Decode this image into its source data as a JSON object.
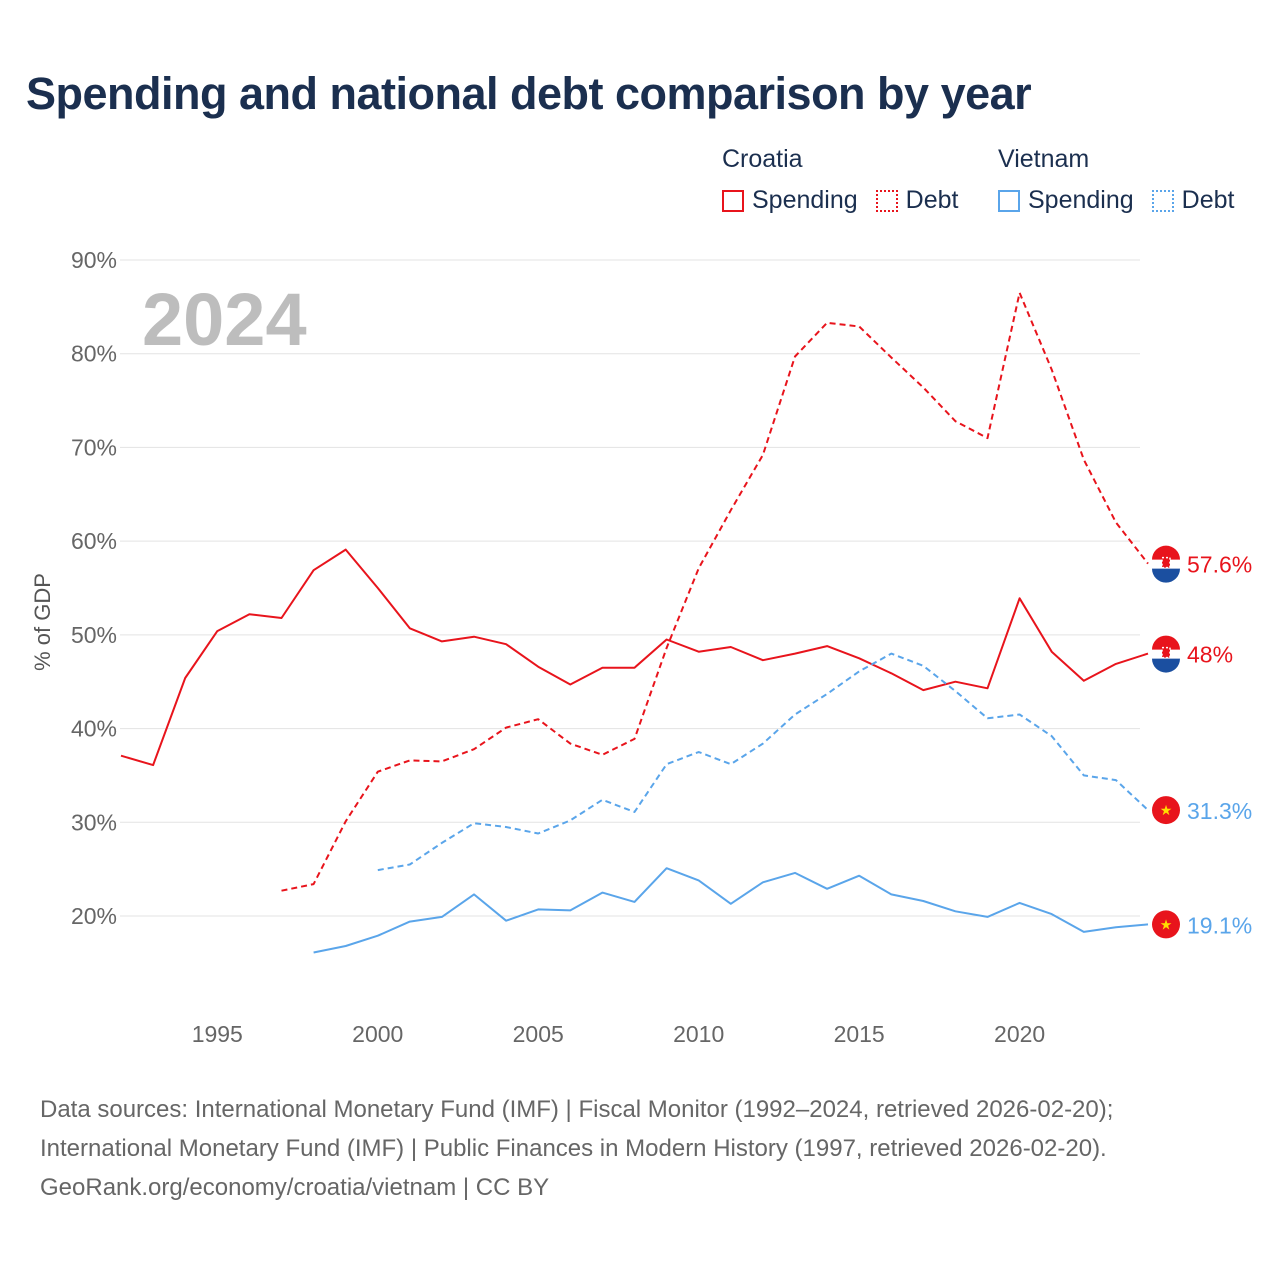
{
  "title": "Spending and national debt comparison by year",
  "legend": {
    "groups": [
      {
        "country": "Croatia",
        "items": [
          "Spending",
          "Debt"
        ],
        "color": "#e8141c"
      },
      {
        "country": "Vietnam",
        "items": [
          "Spending",
          "Debt"
        ],
        "color": "#5aa5ea"
      }
    ]
  },
  "year_watermark": "2024",
  "sources": [
    "Data sources: International Monetary Fund (IMF) | Fiscal Monitor (1992–2024, retrieved 2026-02-20);",
    "International Monetary Fund (IMF) | Public Finances in Modern History (1997, retrieved 2026-02-20).",
    "GeoRank.org/economy/croatia/vietnam | CC BY"
  ],
  "chart_data": {
    "type": "line",
    "title": "Spending and national debt comparison by year",
    "ylabel": "% of GDP",
    "xlabel": "",
    "xlim": [
      1992,
      2024
    ],
    "ylim": [
      20,
      90
    ],
    "yticks": [
      "20%",
      "30%",
      "40%",
      "50%",
      "60%",
      "70%",
      "80%",
      "90%"
    ],
    "ytick_values": [
      20,
      30,
      40,
      50,
      60,
      70,
      80,
      90
    ],
    "xticks": [
      "1995",
      "2000",
      "2005",
      "2010",
      "2015",
      "2020"
    ],
    "xtick_values": [
      1995,
      2000,
      2005,
      2010,
      2015,
      2020
    ],
    "grid": true,
    "legend_position": "top-right",
    "series": [
      {
        "name": "Croatia Spending",
        "color": "#e8141c",
        "dashed": false,
        "flag": "croatia",
        "end_label": "48%",
        "x_start": 1992,
        "values": [
          37.1,
          36.1,
          45.4,
          50.4,
          52.2,
          51.8,
          56.9,
          59.1,
          55.0,
          50.7,
          49.3,
          49.8,
          49.0,
          46.6,
          44.7,
          46.5,
          46.5,
          49.5,
          48.2,
          48.7,
          47.3,
          48.0,
          48.8,
          47.5,
          45.9,
          44.1,
          45.0,
          44.3,
          53.9,
          48.2,
          45.1,
          46.9,
          48.0
        ]
      },
      {
        "name": "Croatia Debt",
        "color": "#e8141c",
        "dashed": true,
        "flag": "croatia",
        "end_label": "57.6%",
        "x_start": 1997,
        "values": [
          22.7,
          23.4,
          30.1,
          35.4,
          36.6,
          36.5,
          37.8,
          40.1,
          41.0,
          38.4,
          37.2,
          38.9,
          48.6,
          57.1,
          63.3,
          69.2,
          79.7,
          83.3,
          82.9,
          79.6,
          76.4,
          72.8,
          71.0,
          86.5,
          78.3,
          68.7,
          62.0,
          57.6
        ]
      },
      {
        "name": "Vietnam Spending",
        "color": "#5aa5ea",
        "dashed": false,
        "flag": "vietnam",
        "end_label": "19.1%",
        "x_start": 1998,
        "values": [
          16.1,
          16.8,
          17.9,
          19.4,
          19.9,
          22.3,
          19.5,
          20.7,
          20.6,
          22.5,
          21.5,
          25.1,
          23.8,
          21.3,
          23.6,
          24.6,
          22.9,
          24.3,
          22.3,
          21.6,
          20.5,
          19.9,
          21.4,
          20.2,
          18.3,
          18.8,
          19.1
        ]
      },
      {
        "name": "Vietnam Debt",
        "color": "#5aa5ea",
        "dashed": true,
        "flag": "vietnam",
        "end_label": "31.3%",
        "x_start": 2000,
        "values": [
          24.9,
          25.5,
          27.8,
          29.9,
          29.5,
          28.8,
          30.2,
          32.4,
          31.1,
          36.2,
          37.5,
          36.2,
          38.4,
          41.5,
          43.7,
          46.1,
          48.0,
          46.7,
          44.0,
          41.1,
          41.5,
          39.2,
          35.0,
          34.5,
          31.3
        ]
      }
    ]
  }
}
